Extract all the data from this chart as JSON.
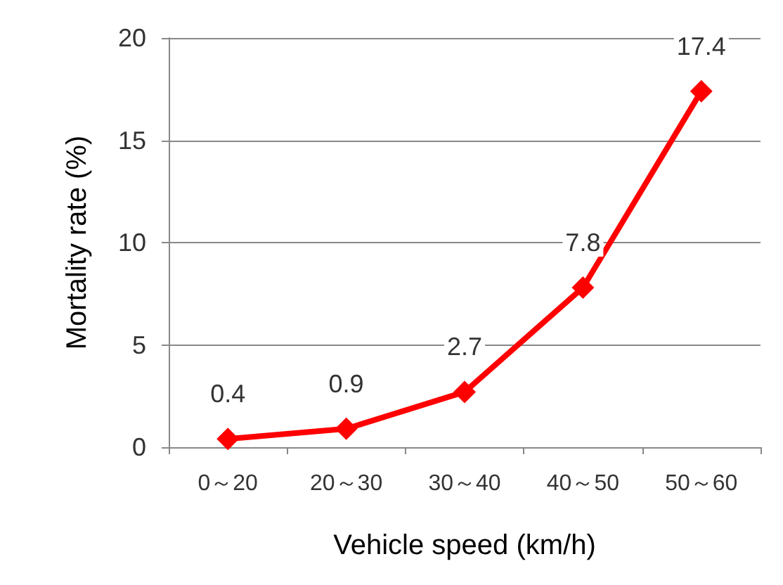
{
  "chart_data": {
    "type": "line",
    "xlabel": "Vehicle speed (km/h)",
    "ylabel": "Mortality rate (%)",
    "categories": [
      "0～20",
      "20～30",
      "30～40",
      "40～50",
      "50～60"
    ],
    "series": [
      {
        "color": "#ff0000",
        "values": [
          0.4,
          0.9,
          2.7,
          7.8,
          17.4
        ]
      }
    ],
    "ylim": [
      0,
      20
    ],
    "yticks": [
      0,
      5,
      10,
      15,
      20
    ],
    "grid": "y",
    "marker": "diamond",
    "line_style": "solid",
    "data_labels": true
  }
}
